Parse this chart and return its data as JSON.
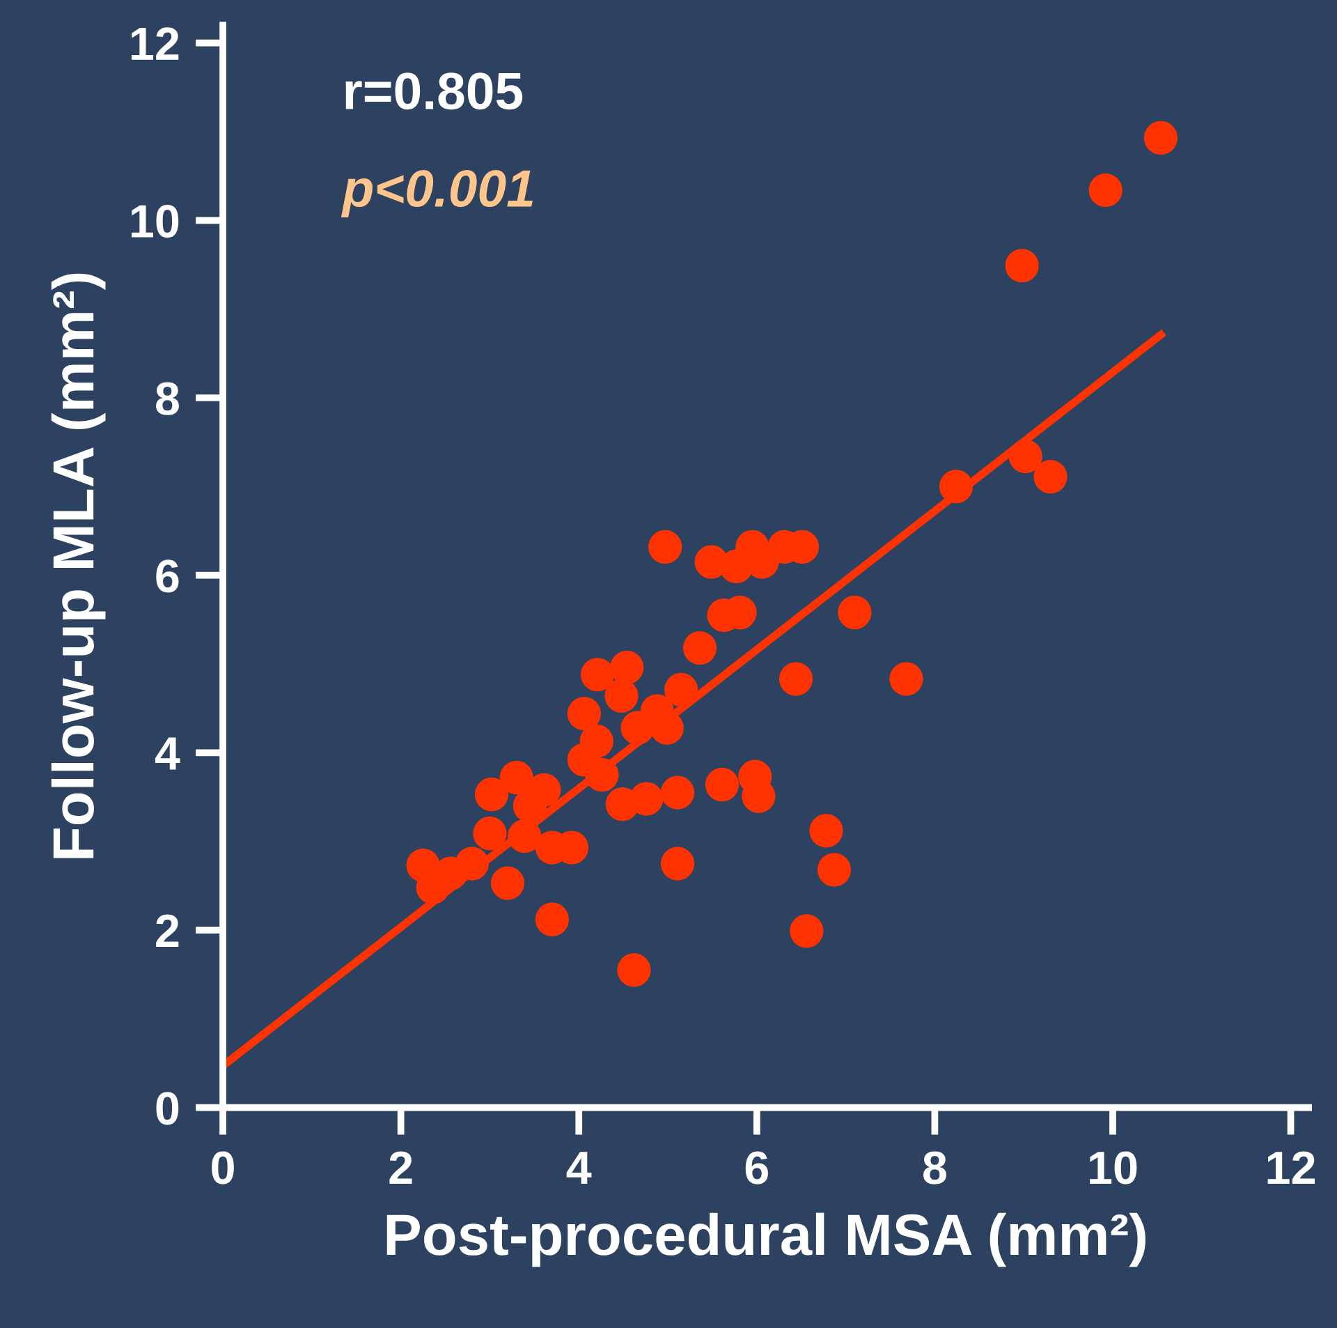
{
  "chart_data": {
    "type": "scatter",
    "xlabel": "Post-procedural MSA (mm²)",
    "ylabel": "Follow-up MLA (mm²)",
    "annotations": [
      "r=0.805",
      "p<0.001"
    ],
    "xlim": [
      0,
      12.2
    ],
    "ylim": [
      0,
      12.2
    ],
    "xticks": [
      0,
      2,
      4,
      6,
      8,
      10,
      12
    ],
    "yticks": [
      0,
      2,
      4,
      6,
      8,
      10,
      12
    ],
    "grid": false,
    "legend": false,
    "marker": "circle",
    "series": [
      {
        "color": "#ff3300",
        "x": [
          10.54,
          9.92,
          8.98,
          9.02,
          9.3,
          8.24,
          7.1,
          7.68,
          6.44,
          4.97,
          5.49,
          5.77,
          5.95,
          6.06,
          6.31,
          6.51,
          5.63,
          5.81,
          5.36,
          5.15,
          4.21,
          4.54,
          4.06,
          4.48,
          4.88,
          4.99,
          4.66,
          4.2,
          4.06,
          4.26,
          4.49,
          4.76,
          5.11,
          5.61,
          5.98,
          6.02,
          3.3,
          3.02,
          3.61,
          3.45,
          3.39,
          3.0,
          3.7,
          3.92,
          3.2,
          2.25,
          2.36,
          2.56,
          2.8,
          3.7,
          5.11,
          4.62,
          6.78,
          6.87,
          6.56
        ],
        "values": [
          10.93,
          10.34,
          9.49,
          7.34,
          7.11,
          7.0,
          5.58,
          4.83,
          4.83,
          6.32,
          6.15,
          6.1,
          6.32,
          6.15,
          6.32,
          6.32,
          5.55,
          5.58,
          5.18,
          4.71,
          4.88,
          4.96,
          4.44,
          4.64,
          4.47,
          4.28,
          4.28,
          4.13,
          3.92,
          3.75,
          3.42,
          3.48,
          3.55,
          3.64,
          3.73,
          3.51,
          3.72,
          3.53,
          3.58,
          3.4,
          3.06,
          3.09,
          2.93,
          2.93,
          2.53,
          2.73,
          2.48,
          2.64,
          2.75,
          2.12,
          2.75,
          1.55,
          3.12,
          2.68,
          1.99
        ]
      },
      {
        "type": "line",
        "color": "#ff3300",
        "x": [
          0,
          10.54
        ],
        "values": [
          0.47,
          8.71
        ],
        "marker": "none",
        "line_style": "solid"
      }
    ]
  }
}
